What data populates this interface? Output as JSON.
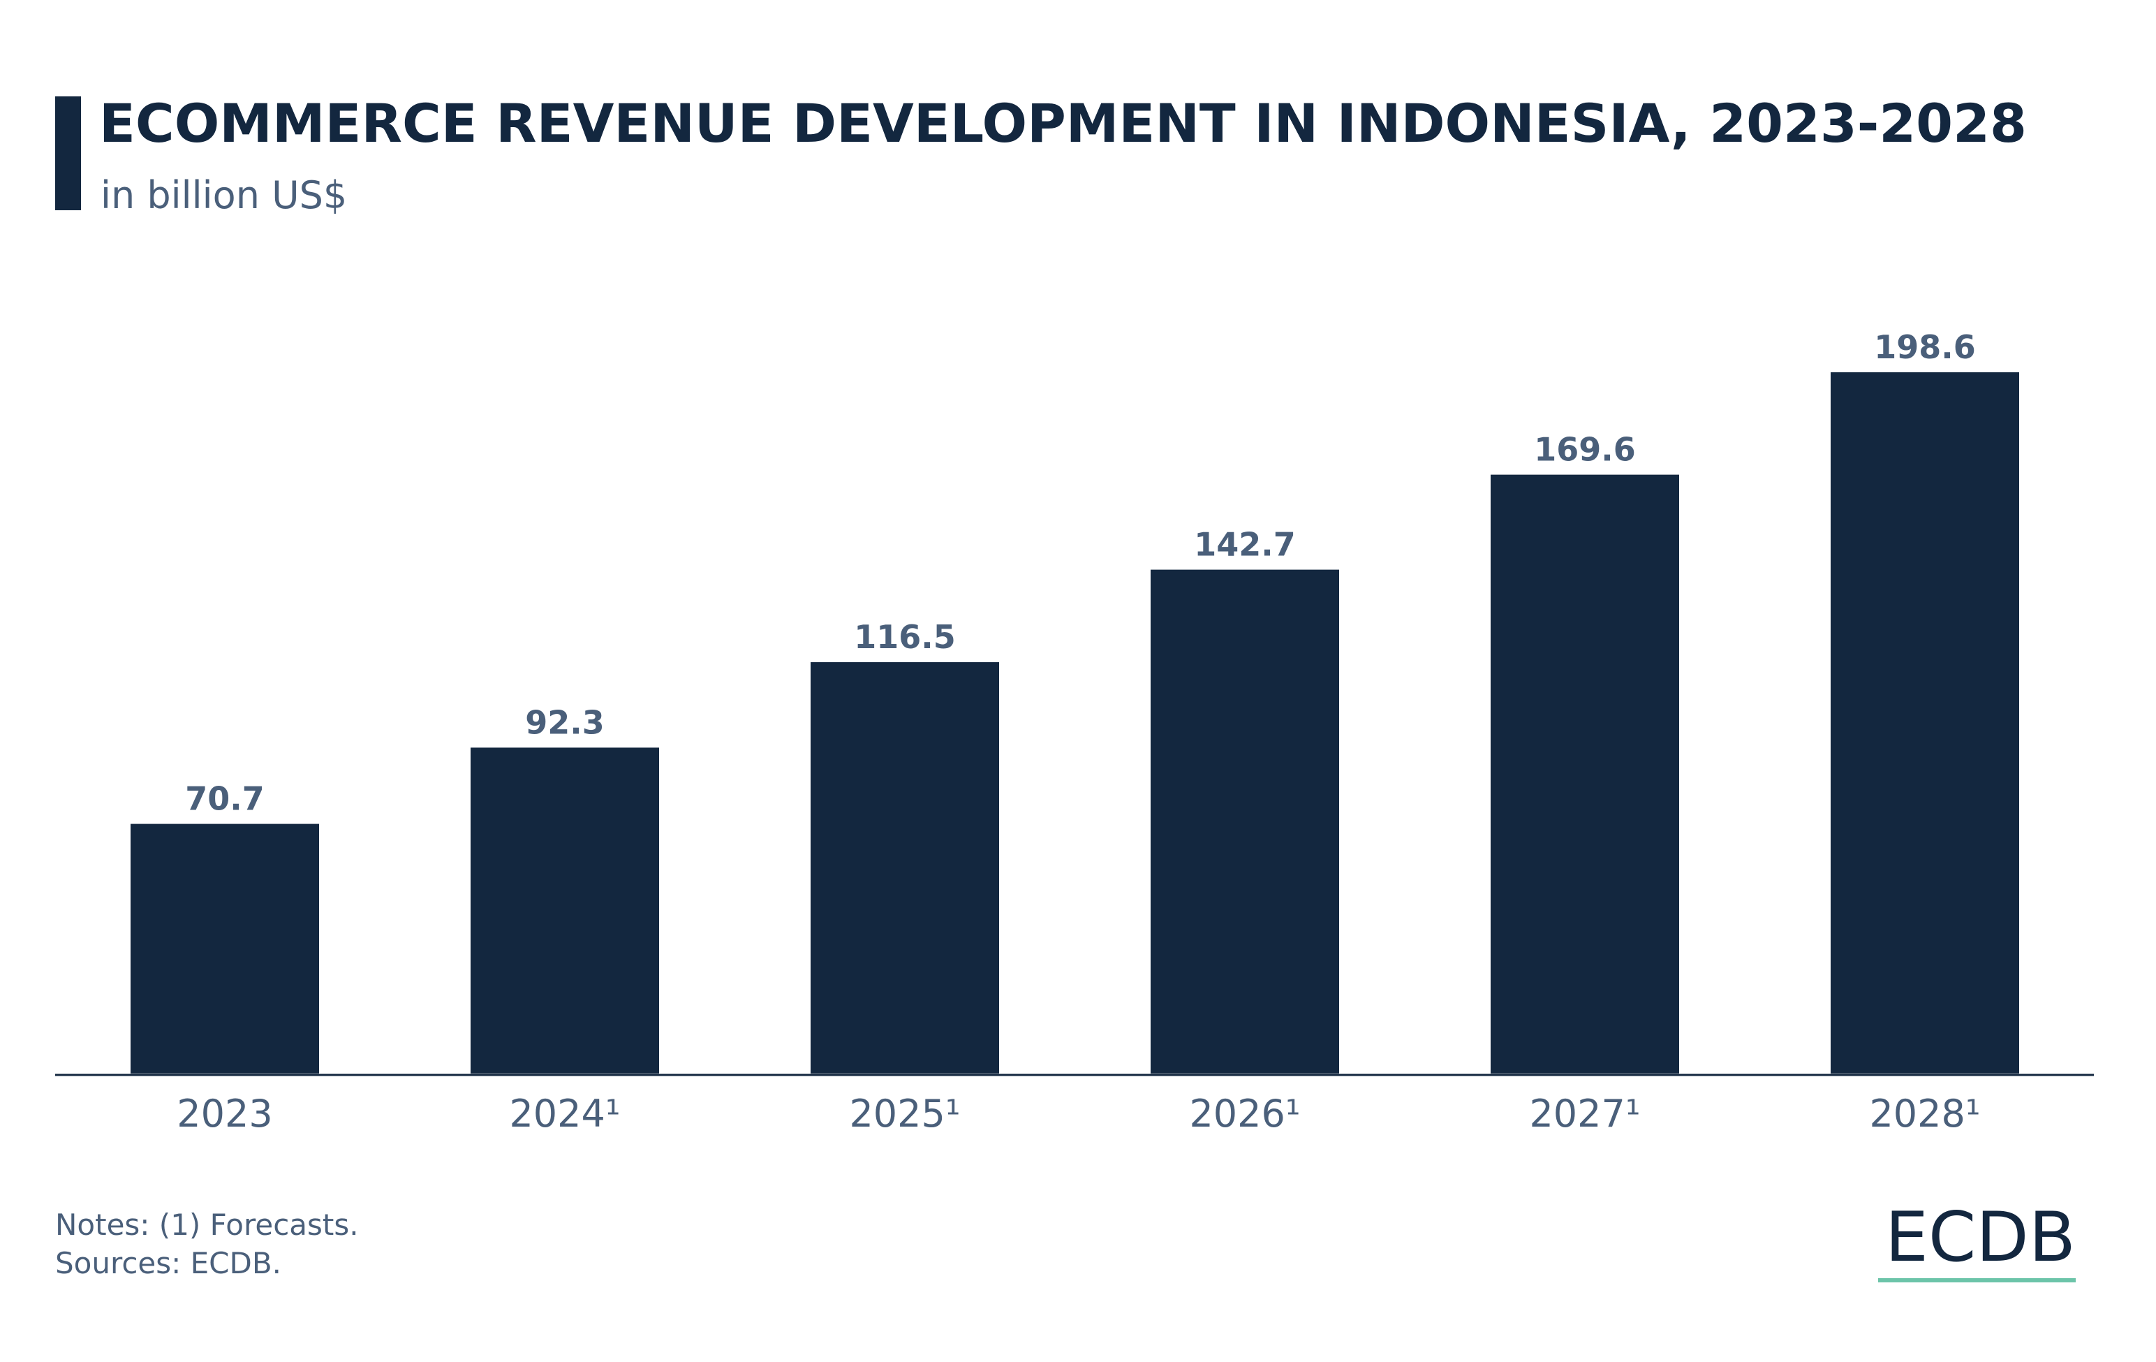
{
  "chart_data": {
    "type": "bar",
    "title": "ECOMMERCE REVENUE DEVELOPMENT IN INDONESIA, 2023-2028",
    "subtitle": "in billion US$",
    "categories": [
      "2023",
      "2024¹",
      "2025¹",
      "2026¹",
      "2027¹",
      "2028¹"
    ],
    "values": [
      70.7,
      92.3,
      116.5,
      142.7,
      169.6,
      198.6
    ],
    "color": "#13273f",
    "notes": "Notes: (1) Forecasts.",
    "sources": "Sources: ECDB."
  },
  "logo": "ECDB"
}
